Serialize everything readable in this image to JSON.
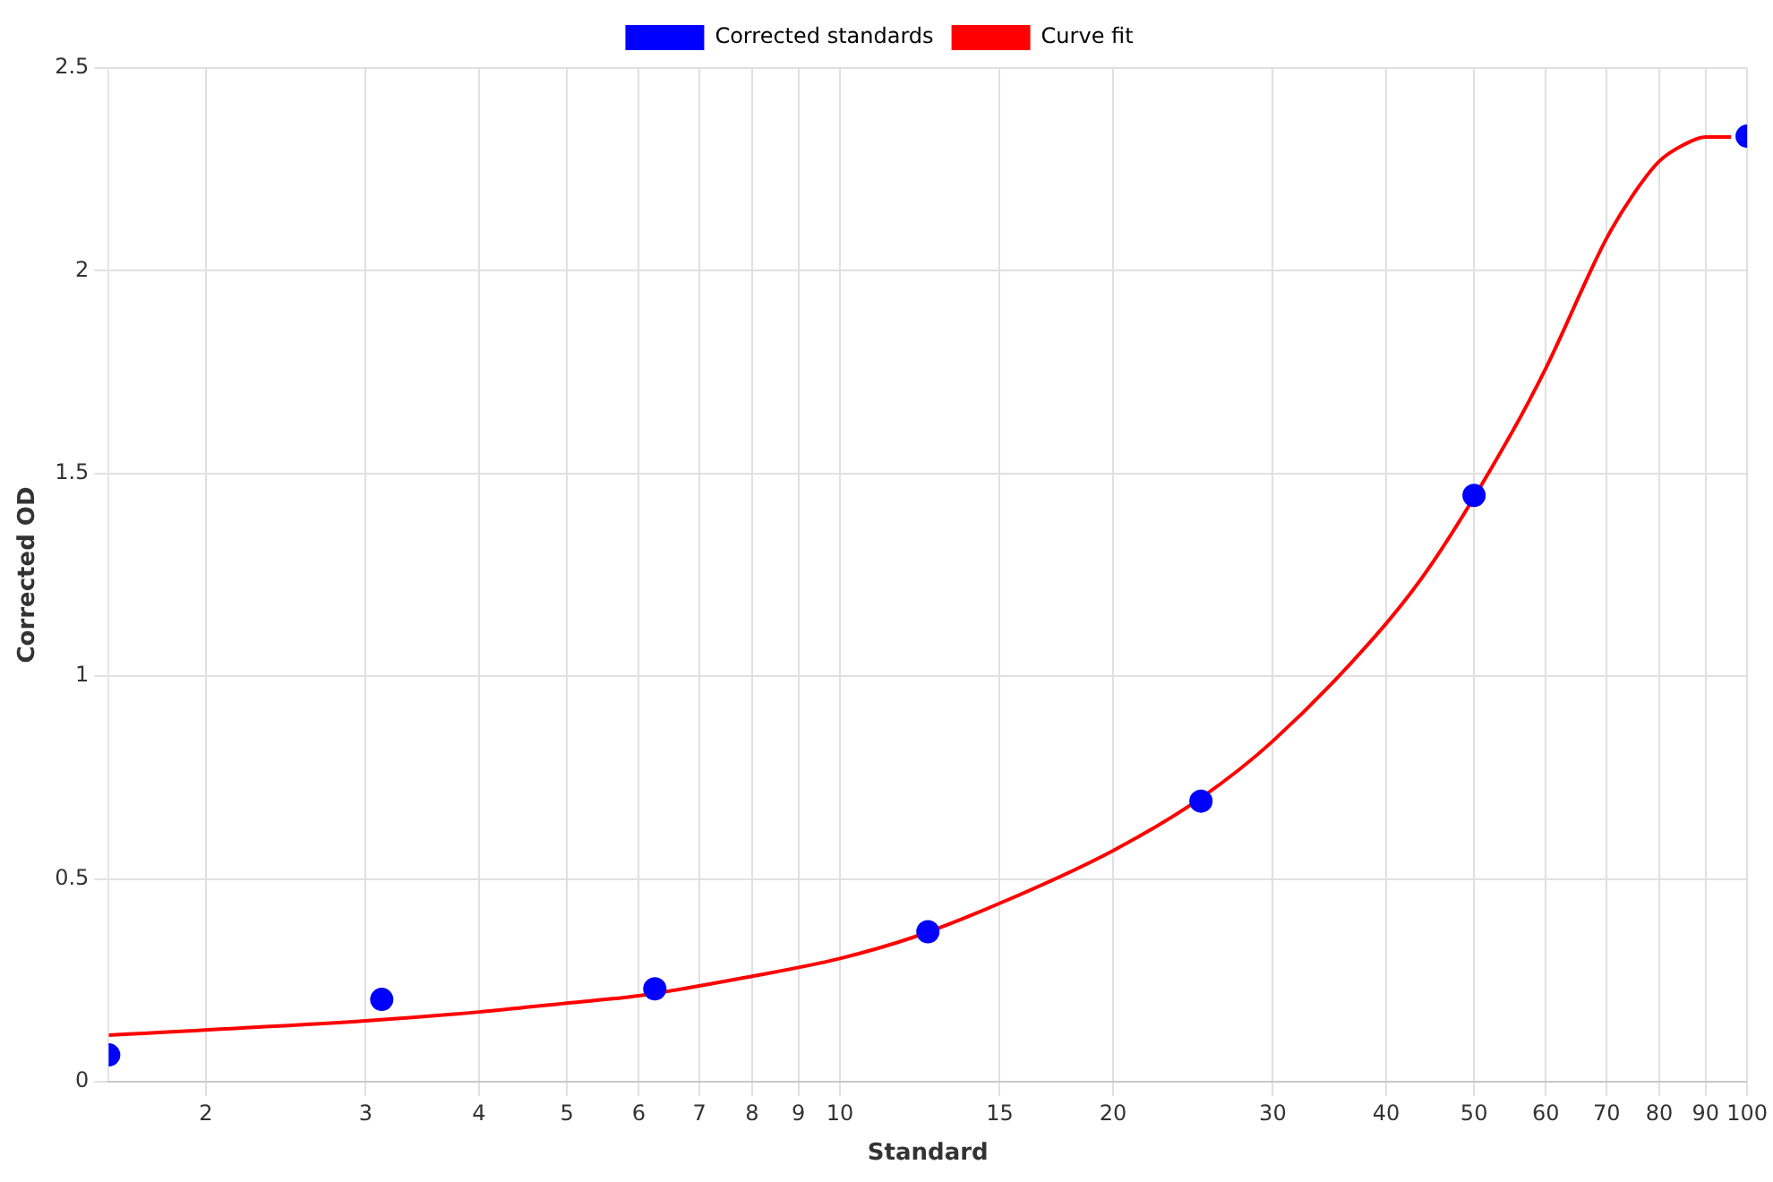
{
  "chart_data": {
    "type": "scatter",
    "xlabel": "Standard",
    "ylabel": "Corrected OD",
    "log": "x",
    "xlim": [
      1.5625,
      100
    ],
    "xticks": [
      2,
      3,
      4,
      5,
      6,
      7,
      8,
      9,
      10,
      15,
      20,
      30,
      40,
      50,
      60,
      70,
      80,
      90,
      100
    ],
    "ylim": [
      0,
      2.5
    ],
    "yticks": [
      0,
      0.5,
      1,
      1.5,
      2,
      2.5
    ],
    "grid": true,
    "legend": "top",
    "marker": "circle",
    "series": [
      {
        "name": "Corrected standards",
        "type": "scatter",
        "color": "#0000ff",
        "x": [
          1.5625,
          3.125,
          6.25,
          12.5,
          25,
          50,
          100
        ],
        "values": [
          0.066,
          0.203,
          0.229,
          0.37,
          0.692,
          1.446,
          2.332
        ]
      },
      {
        "name": "Curve fit",
        "type": "line",
        "color": "#ff0000",
        "marker": "none",
        "line_style": "solid",
        "x": [
          1.5625,
          3,
          4,
          5,
          6,
          8,
          10,
          12,
          15,
          20,
          25,
          30,
          40,
          45,
          55,
          60,
          70,
          75,
          80,
          85,
          90,
          96
        ],
        "values": [
          0.115,
          0.15,
          0.172,
          0.194,
          0.212,
          0.26,
          0.304,
          0.355,
          0.44,
          0.57,
          0.7,
          0.84,
          1.13,
          1.28,
          1.6,
          1.76,
          2.08,
          2.19,
          2.27,
          2.31,
          2.33,
          2.33
        ]
      }
    ]
  }
}
